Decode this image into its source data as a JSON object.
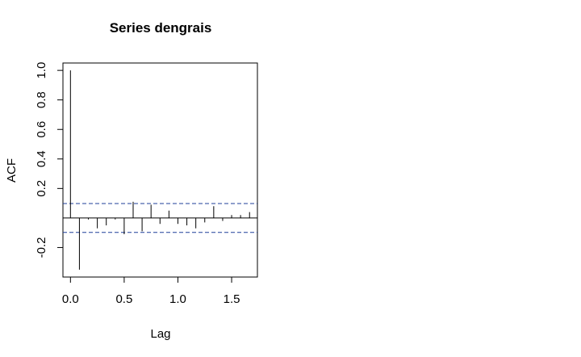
{
  "chart_data": {
    "type": "bar",
    "title": "Series  dengrais",
    "xlabel": "Lag",
    "ylabel": "ACF",
    "xlim": [
      -0.07,
      1.74
    ],
    "ylim": [
      -0.4,
      1.0
    ],
    "x_ticks": [
      0.0,
      0.5,
      1.0,
      1.5
    ],
    "x_tick_labels": [
      "0.0",
      "0.5",
      "1.0",
      "1.5"
    ],
    "y_ticks": [
      -0.2,
      0.2,
      0.4,
      0.6,
      0.8,
      1.0
    ],
    "y_tick_labels": [
      "-0.2",
      "0.2",
      "0.4",
      "0.6",
      "0.8",
      "1.0"
    ],
    "confidence_bound": 0.098,
    "grid": false,
    "lags": [
      0.0,
      0.0833,
      0.1667,
      0.25,
      0.3333,
      0.4167,
      0.5,
      0.5833,
      0.6667,
      0.75,
      0.8333,
      0.9167,
      1.0,
      1.0833,
      1.1667,
      1.25,
      1.3333,
      1.4167,
      1.5,
      1.5833,
      1.6667
    ],
    "acf": [
      1.0,
      -0.35,
      -0.01,
      -0.07,
      -0.05,
      -0.01,
      -0.11,
      0.11,
      -0.09,
      0.09,
      -0.04,
      0.05,
      -0.04,
      -0.05,
      -0.07,
      -0.03,
      0.08,
      -0.02,
      0.02,
      0.02,
      0.04
    ]
  }
}
